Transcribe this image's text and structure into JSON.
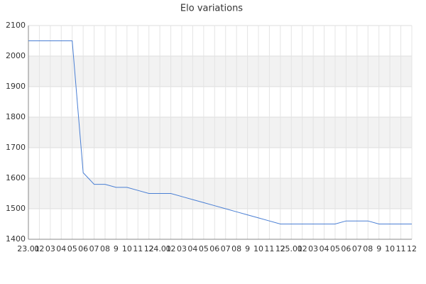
{
  "chart_data": {
    "type": "line",
    "title": "Elo variations",
    "categories": [
      "23.01",
      "02",
      "03",
      "04",
      "05",
      "06",
      "07",
      "08",
      "9",
      "10",
      "11",
      "12",
      "24.01",
      "02",
      "03",
      "04",
      "05",
      "06",
      "07",
      "08",
      "9",
      "10",
      "11",
      "12",
      "25.01",
      "02",
      "03",
      "04",
      "05",
      "06",
      "07",
      "08",
      "9",
      "10",
      "11",
      "12"
    ],
    "values": [
      2050,
      2050,
      2050,
      2050,
      2050,
      1618,
      1580,
      1580,
      1570,
      1570,
      1560,
      1550,
      1550,
      1550,
      1540,
      1530,
      1520,
      1510,
      1500,
      1490,
      1480,
      1470,
      1460,
      1450,
      1450,
      1450,
      1450,
      1450,
      1450,
      1460,
      1460,
      1460,
      1450,
      1450,
      1450,
      1450
    ],
    "color": "#4a7fd4",
    "ylim": [
      1400,
      2100
    ],
    "yticks": [
      1400,
      1500,
      1600,
      1700,
      1800,
      1900,
      2000,
      2100
    ],
    "grid": true
  }
}
